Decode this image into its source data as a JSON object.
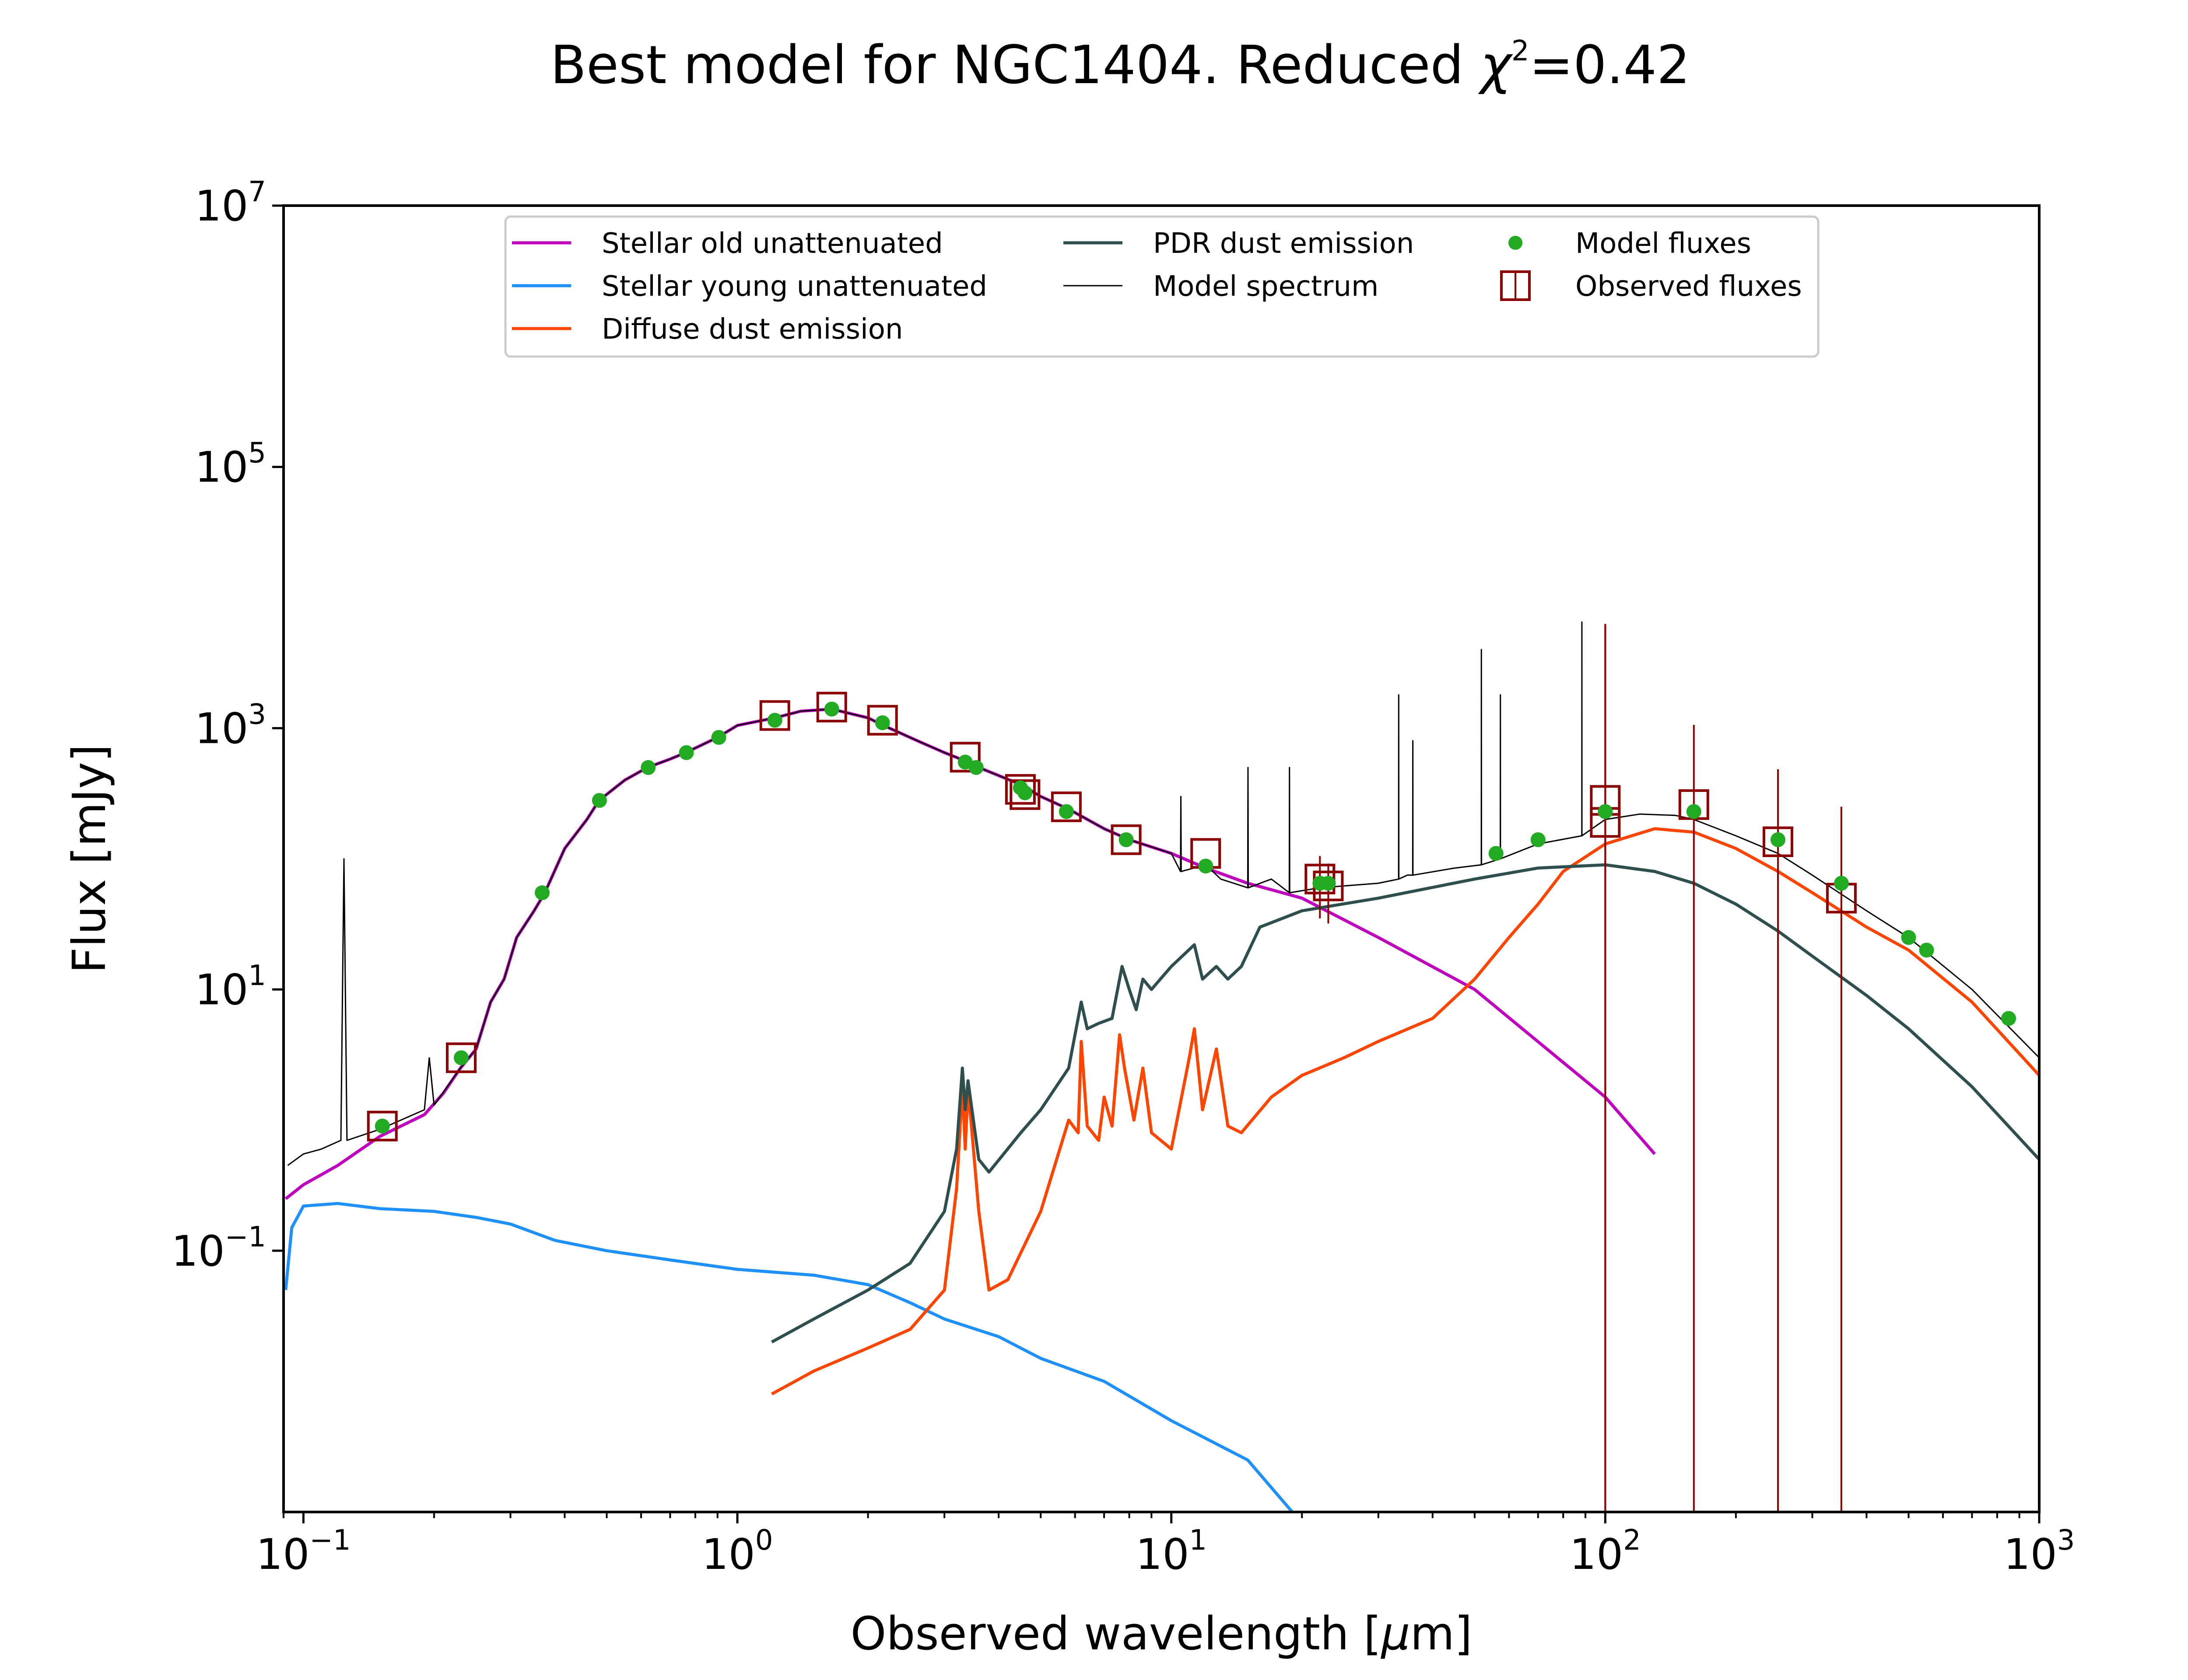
{
  "chart_data": {
    "type": "line",
    "title": {
      "prefix": "Best model for NGC1404. Reduced ",
      "chi": "χ",
      "sup": "2",
      "suffix": "=0.42"
    },
    "xlabel": {
      "prefix": "Observed wavelength [",
      "mu": "μ",
      "suffix": "m]"
    },
    "ylabel": "Flux [mJy]",
    "x_scale": "log",
    "y_scale": "log",
    "xlim": [
      0.09,
      1000
    ],
    "ylim": [
      0.001,
      10000000
    ],
    "x_ticks": [
      {
        "value": 0.1,
        "base": "10",
        "exp": "−1"
      },
      {
        "value": 1,
        "base": "10",
        "exp": "0"
      },
      {
        "value": 10,
        "base": "10",
        "exp": "1"
      },
      {
        "value": 100,
        "base": "10",
        "exp": "2"
      },
      {
        "value": 1000,
        "base": "10",
        "exp": "3"
      }
    ],
    "y_ticks": [
      {
        "value": 0.1,
        "base": "10",
        "exp": "−1"
      },
      {
        "value": 10,
        "base": "10",
        "exp": "1"
      },
      {
        "value": 1000,
        "base": "10",
        "exp": "3"
      },
      {
        "value": 100000,
        "base": "10",
        "exp": "5"
      },
      {
        "value": 10000000,
        "base": "10",
        "exp": "7"
      }
    ],
    "grid": false,
    "legend_position": "top-center",
    "series": [
      {
        "key": "old",
        "name": "Stellar old unattenuated",
        "color": "#bf00bf",
        "points": [
          [
            0.091,
            0.25
          ],
          [
            0.1,
            0.32
          ],
          [
            0.12,
            0.45
          ],
          [
            0.15,
            0.75
          ],
          [
            0.19,
            1.1
          ],
          [
            0.21,
            1.6
          ],
          [
            0.23,
            2.5
          ],
          [
            0.25,
            3.5
          ],
          [
            0.27,
            8
          ],
          [
            0.29,
            12
          ],
          [
            0.31,
            25
          ],
          [
            0.34,
            40
          ],
          [
            0.36,
            55
          ],
          [
            0.4,
            120
          ],
          [
            0.45,
            200
          ],
          [
            0.48,
            280
          ],
          [
            0.55,
            400
          ],
          [
            0.62,
            500
          ],
          [
            0.7,
            580
          ],
          [
            0.76,
            650
          ],
          [
            0.9,
            850
          ],
          [
            1.0,
            1050
          ],
          [
            1.22,
            1200
          ],
          [
            1.4,
            1350
          ],
          [
            1.65,
            1400
          ],
          [
            2.0,
            1200
          ],
          [
            2.17,
            1050
          ],
          [
            2.6,
            800
          ],
          [
            3.0,
            650
          ],
          [
            3.4,
            550
          ],
          [
            3.6,
            500
          ],
          [
            4.5,
            370
          ],
          [
            5.0,
            300
          ],
          [
            5.8,
            240
          ],
          [
            7.0,
            170
          ],
          [
            8.0,
            140
          ],
          [
            10,
            110
          ],
          [
            12,
            85
          ],
          [
            15,
            65
          ],
          [
            20,
            50
          ],
          [
            30,
            25
          ],
          [
            50,
            10
          ],
          [
            100,
            1.5
          ],
          [
            130,
            0.55
          ]
        ]
      },
      {
        "key": "young",
        "name": "Stellar young unattenuated",
        "color": "#1e90ff",
        "points": [
          [
            0.091,
            0.05
          ],
          [
            0.094,
            0.15
          ],
          [
            0.1,
            0.22
          ],
          [
            0.12,
            0.23
          ],
          [
            0.15,
            0.21
          ],
          [
            0.2,
            0.2
          ],
          [
            0.25,
            0.18
          ],
          [
            0.3,
            0.16
          ],
          [
            0.38,
            0.12
          ],
          [
            0.5,
            0.1
          ],
          [
            0.7,
            0.085
          ],
          [
            1.0,
            0.072
          ],
          [
            1.5,
            0.065
          ],
          [
            2.0,
            0.055
          ],
          [
            2.5,
            0.04
          ],
          [
            3.0,
            0.03
          ],
          [
            4.0,
            0.022
          ],
          [
            5.0,
            0.015
          ],
          [
            7.0,
            0.01
          ],
          [
            10,
            0.005
          ],
          [
            15,
            0.0025
          ],
          [
            19,
            0.001
          ]
        ]
      },
      {
        "key": "diffuse",
        "name": "Diffuse dust emission",
        "color": "#ff4500",
        "points": [
          [
            1.2,
            0.008
          ],
          [
            1.5,
            0.012
          ],
          [
            2.0,
            0.018
          ],
          [
            2.5,
            0.025
          ],
          [
            3.0,
            0.05
          ],
          [
            3.2,
            0.3
          ],
          [
            3.3,
            1.8
          ],
          [
            3.35,
            0.6
          ],
          [
            3.4,
            1.8
          ],
          [
            3.6,
            0.2
          ],
          [
            3.8,
            0.05
          ],
          [
            4.2,
            0.06
          ],
          [
            5.0,
            0.2
          ],
          [
            5.8,
            1.0
          ],
          [
            6.1,
            0.8
          ],
          [
            6.2,
            4.0
          ],
          [
            6.4,
            0.9
          ],
          [
            6.8,
            0.7
          ],
          [
            7.0,
            1.5
          ],
          [
            7.3,
            0.9
          ],
          [
            7.6,
            4.5
          ],
          [
            7.8,
            2.5
          ],
          [
            8.2,
            1.0
          ],
          [
            8.6,
            2.5
          ],
          [
            9.0,
            0.8
          ],
          [
            10,
            0.6
          ],
          [
            11.0,
            3.0
          ],
          [
            11.3,
            5.0
          ],
          [
            11.8,
            1.2
          ],
          [
            12.7,
            3.5
          ],
          [
            13.5,
            0.9
          ],
          [
            14.5,
            0.8
          ],
          [
            17,
            1.5
          ],
          [
            20,
            2.2
          ],
          [
            25,
            3.0
          ],
          [
            30,
            4.0
          ],
          [
            40,
            6.0
          ],
          [
            50,
            12
          ],
          [
            60,
            25
          ],
          [
            70,
            45
          ],
          [
            80,
            80
          ],
          [
            100,
            130
          ],
          [
            130,
            170
          ],
          [
            160,
            160
          ],
          [
            200,
            120
          ],
          [
            250,
            80
          ],
          [
            300,
            55
          ],
          [
            400,
            30
          ],
          [
            500,
            20
          ],
          [
            700,
            8
          ],
          [
            1000,
            2.2
          ]
        ]
      },
      {
        "key": "pdr",
        "name": "PDR dust emission",
        "color": "#2f4f4f",
        "points": [
          [
            1.2,
            0.02
          ],
          [
            1.5,
            0.03
          ],
          [
            2.0,
            0.05
          ],
          [
            2.5,
            0.08
          ],
          [
            3.0,
            0.2
          ],
          [
            3.2,
            0.6
          ],
          [
            3.3,
            2.5
          ],
          [
            3.35,
            1.2
          ],
          [
            3.4,
            2.0
          ],
          [
            3.6,
            0.5
          ],
          [
            3.8,
            0.4
          ],
          [
            4.5,
            0.8
          ],
          [
            5.0,
            1.2
          ],
          [
            5.8,
            2.5
          ],
          [
            6.2,
            8.0
          ],
          [
            6.4,
            5.0
          ],
          [
            6.8,
            5.5
          ],
          [
            7.3,
            6.0
          ],
          [
            7.7,
            15
          ],
          [
            8.0,
            10
          ],
          [
            8.3,
            7
          ],
          [
            8.6,
            12
          ],
          [
            9.0,
            10
          ],
          [
            10,
            15
          ],
          [
            11.3,
            22
          ],
          [
            11.8,
            12
          ],
          [
            12.7,
            15
          ],
          [
            13.5,
            12
          ],
          [
            14.5,
            15
          ],
          [
            16,
            30
          ],
          [
            20,
            40
          ],
          [
            30,
            50
          ],
          [
            50,
            70
          ],
          [
            70,
            85
          ],
          [
            100,
            90
          ],
          [
            130,
            80
          ],
          [
            160,
            65
          ],
          [
            200,
            45
          ],
          [
            250,
            28
          ],
          [
            300,
            18
          ],
          [
            400,
            9
          ],
          [
            500,
            5
          ],
          [
            700,
            1.8
          ],
          [
            1000,
            0.5
          ]
        ]
      },
      {
        "key": "model",
        "name": "Model spectrum",
        "color": "#000000",
        "points": [
          [
            0.092,
            0.45
          ],
          [
            0.1,
            0.55
          ],
          [
            0.11,
            0.6
          ],
          [
            0.122,
            0.7
          ],
          [
            0.124,
            100
          ],
          [
            0.126,
            0.7
          ],
          [
            0.15,
            0.85
          ],
          [
            0.19,
            1.2
          ],
          [
            0.195,
            3.0
          ],
          [
            0.2,
            1.3
          ],
          [
            0.23,
            2.5
          ],
          [
            0.25,
            3.5
          ],
          [
            0.27,
            8
          ],
          [
            0.29,
            12
          ],
          [
            0.31,
            25
          ],
          [
            0.34,
            40
          ],
          [
            0.36,
            55
          ],
          [
            0.4,
            120
          ],
          [
            0.45,
            200
          ],
          [
            0.48,
            280
          ],
          [
            0.55,
            400
          ],
          [
            0.62,
            500
          ],
          [
            0.7,
            580
          ],
          [
            0.76,
            650
          ],
          [
            0.9,
            850
          ],
          [
            1.0,
            1050
          ],
          [
            1.22,
            1200
          ],
          [
            1.4,
            1350
          ],
          [
            1.65,
            1400
          ],
          [
            2.0,
            1200
          ],
          [
            2.17,
            1050
          ],
          [
            2.6,
            800
          ],
          [
            3.0,
            650
          ],
          [
            3.4,
            550
          ],
          [
            3.6,
            500
          ],
          [
            4.5,
            370
          ],
          [
            5.0,
            300
          ],
          [
            5.8,
            240
          ],
          [
            7.0,
            170
          ],
          [
            8.0,
            140
          ],
          [
            10,
            110
          ],
          [
            10.5,
            80
          ],
          [
            10.52,
            300
          ],
          [
            10.54,
            80
          ],
          [
            12,
            90
          ],
          [
            13,
            70
          ],
          [
            15.0,
            60
          ],
          [
            15.02,
            500
          ],
          [
            15.04,
            60
          ],
          [
            17,
            70
          ],
          [
            18.7,
            55
          ],
          [
            18.72,
            500
          ],
          [
            18.74,
            55
          ],
          [
            22,
            60
          ],
          [
            30,
            65
          ],
          [
            33.4,
            70
          ],
          [
            33.42,
            1800
          ],
          [
            33.44,
            70
          ],
          [
            35,
            75
          ],
          [
            36.0,
            75
          ],
          [
            36.02,
            800
          ],
          [
            36.04,
            75
          ],
          [
            45,
            85
          ],
          [
            51.8,
            90
          ],
          [
            51.82,
            4000
          ],
          [
            51.84,
            90
          ],
          [
            57.3,
            100
          ],
          [
            57.32,
            1800
          ],
          [
            57.34,
            100
          ],
          [
            70,
            130
          ],
          [
            88.3,
            150
          ],
          [
            88.32,
            6500
          ],
          [
            88.34,
            150
          ],
          [
            100,
            200
          ],
          [
            120,
            220
          ],
          [
            145,
            215
          ],
          [
            160,
            200
          ],
          [
            200,
            150
          ],
          [
            250,
            110
          ],
          [
            300,
            75
          ],
          [
            400,
            40
          ],
          [
            500,
            25
          ],
          [
            700,
            10
          ],
          [
            1000,
            3.0
          ]
        ]
      }
    ],
    "model_fluxes": {
      "name": "Model fluxes",
      "color": "#22aa22",
      "points": [
        [
          0.152,
          0.9
        ],
        [
          0.231,
          3.0
        ],
        [
          0.355,
          55
        ],
        [
          0.481,
          280
        ],
        [
          0.623,
          500
        ],
        [
          0.763,
          650
        ],
        [
          0.906,
          850
        ],
        [
          1.22,
          1150
        ],
        [
          1.65,
          1400
        ],
        [
          2.16,
          1100
        ],
        [
          3.35,
          550
        ],
        [
          3.55,
          500
        ],
        [
          4.49,
          350
        ],
        [
          4.6,
          320
        ],
        [
          5.73,
          230
        ],
        [
          7.87,
          140
        ],
        [
          12.0,
          88
        ],
        [
          22.0,
          65
        ],
        [
          23.0,
          65
        ],
        [
          56,
          110
        ],
        [
          70,
          140
        ],
        [
          100,
          230
        ],
        [
          160,
          230
        ],
        [
          250,
          140
        ],
        [
          350,
          65
        ],
        [
          500,
          25
        ],
        [
          550,
          20
        ],
        [
          850,
          6
        ]
      ]
    },
    "observed_fluxes": {
      "name": "Observed fluxes",
      "color": "#8b0000",
      "points": [
        {
          "x": 0.152,
          "y": 0.9
        },
        {
          "x": 0.231,
          "y": 3.0
        },
        {
          "x": 1.22,
          "y": 1250
        },
        {
          "x": 1.65,
          "y": 1450
        },
        {
          "x": 2.16,
          "y": 1150
        },
        {
          "x": 3.35,
          "y": 600
        },
        {
          "x": 4.49,
          "y": 340
        },
        {
          "x": 4.6,
          "y": 310
        },
        {
          "x": 5.73,
          "y": 250
        },
        {
          "x": 7.87,
          "y": 140
        },
        {
          "x": 12.0,
          "y": 110
        },
        {
          "x": 22.0,
          "y": 70,
          "err": 35
        },
        {
          "x": 23.0,
          "y": 62,
          "err": 30
        },
        {
          "x": 100,
          "y": 280,
          "err": 6000
        },
        {
          "x": 100,
          "y": 190,
          "err": 6000
        },
        {
          "x": 160,
          "y": 260,
          "err": 800
        },
        {
          "x": 250,
          "y": 135,
          "err": 350
        },
        {
          "x": 350,
          "y": 50,
          "err": 200
        }
      ]
    }
  }
}
